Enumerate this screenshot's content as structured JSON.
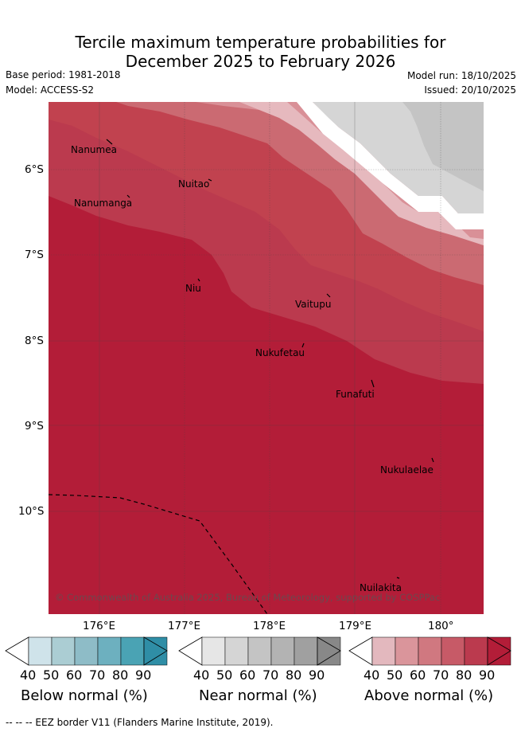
{
  "title": {
    "line1": "Tercile maximum temperature probabilities for",
    "line2": "December 2025 to February 2026"
  },
  "meta": {
    "base_period": "Base period: 1981-2018",
    "model": "Model: ACCESS-S2",
    "model_run": "Model run: 18/10/2025",
    "issued": "Issued: 20/10/2025"
  },
  "map": {
    "lat_labels": [
      "6°S",
      "7°S",
      "8°S",
      "9°S",
      "10°S"
    ],
    "lon_labels": [
      "176°E",
      "177°E",
      "178°E",
      "179°E",
      "180°"
    ],
    "places": [
      {
        "name": "Nanumea"
      },
      {
        "name": "Nuitao"
      },
      {
        "name": "Nanumanga"
      },
      {
        "name": "Niu"
      },
      {
        "name": "Vaitupu"
      },
      {
        "name": "Nukufetau"
      },
      {
        "name": "Funafuti"
      },
      {
        "name": "Nukulaelae"
      },
      {
        "name": "Nuilakita"
      }
    ],
    "copyright": "© Commonwealth of Australia 2025, Bureau of Meteorology, supported by COSPPac"
  },
  "legends": [
    {
      "title": "Below normal (%)",
      "ticks": [
        "40",
        "50",
        "60",
        "70",
        "80",
        "90"
      ],
      "colors": [
        "#cfe3ea",
        "#abcdd3",
        "#8ebcc7",
        "#6db0bf",
        "#4aa3b4",
        "#2f8ea6"
      ]
    },
    {
      "title": "Near normal (%)",
      "ticks": [
        "40",
        "50",
        "60",
        "70",
        "80",
        "90"
      ],
      "colors": [
        "#e6e6e6",
        "#d5d5d5",
        "#c4c4c4",
        "#b3b3b3",
        "#a0a0a0",
        "#888888"
      ]
    },
    {
      "title": "Above normal (%)",
      "ticks": [
        "40",
        "50",
        "60",
        "70",
        "80",
        "90"
      ],
      "colors": [
        "#e3b8be",
        "#da959b",
        "#d07880",
        "#c75a67",
        "#bb3a4e",
        "#b31d38"
      ]
    }
  ],
  "footnote": "--  --  -- EEZ border V11 (Flanders Marine Institute, 2019)."
}
